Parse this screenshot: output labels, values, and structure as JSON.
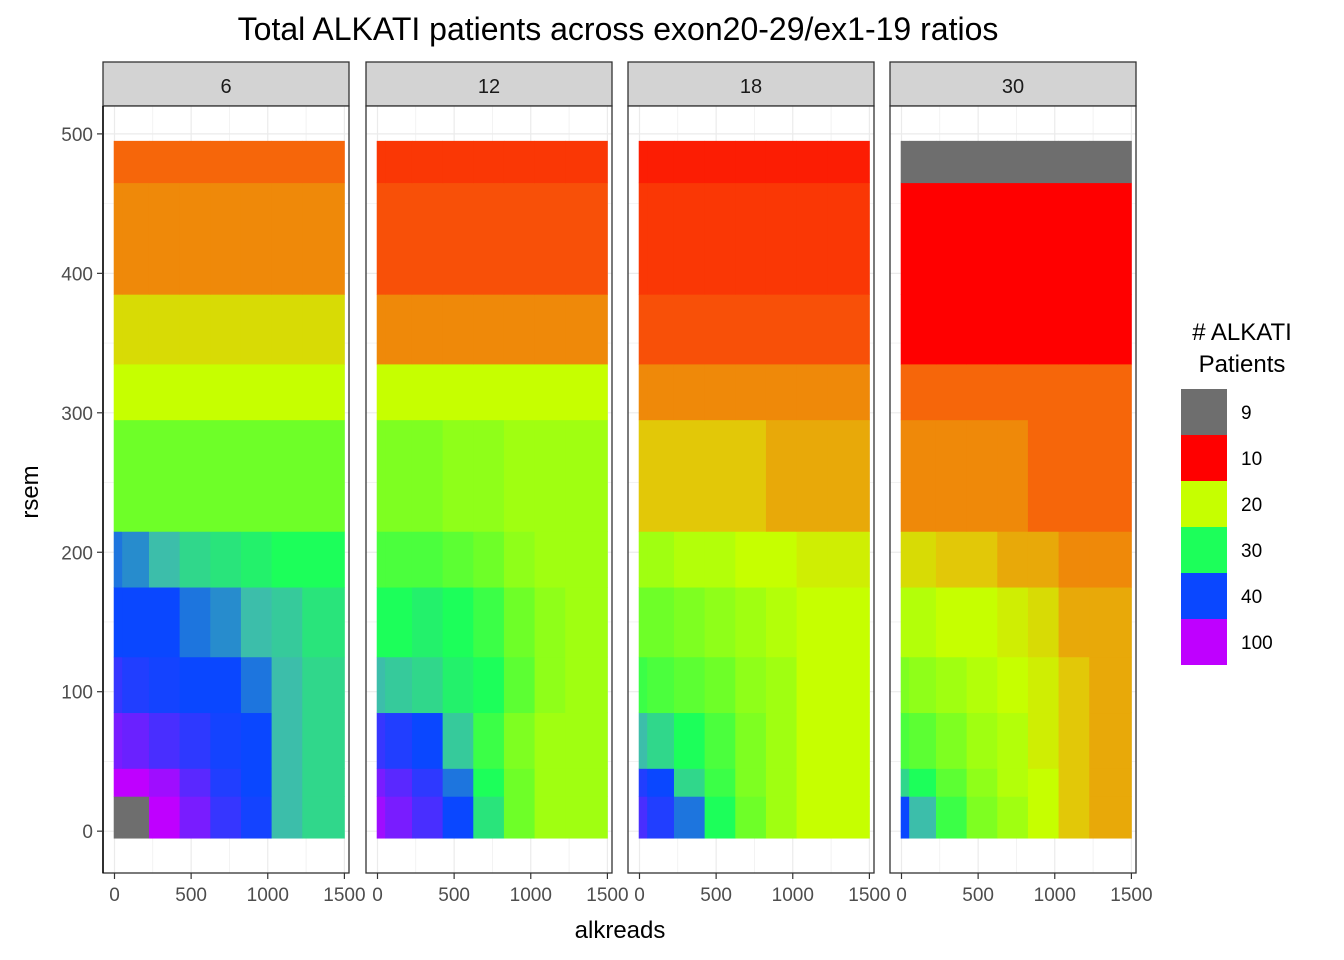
{
  "chart_data": {
    "type": "heatmap",
    "title": "Total ALKATI patients across exon20-29/ex1-19 ratios",
    "xlabel": "alkreads",
    "ylabel": "rsem",
    "xlim": [
      -75,
      1530
    ],
    "ylim": [
      -30,
      520
    ],
    "x_ticks": [
      0,
      500,
      1000,
      1500
    ],
    "x_tick_labels": [
      "0",
      "500",
      "1000",
      "1500"
    ],
    "y_ticks": [
      0,
      100,
      200,
      300,
      400,
      500
    ],
    "y_tick_labels": [
      "0",
      "100",
      "200",
      "300",
      "400",
      "500"
    ],
    "grid": true,
    "legend": {
      "title_lines": [
        "# ALKATI",
        "Patients"
      ],
      "position": "right",
      "breaks": [
        {
          "label": "9",
          "color": "#6E6E6E"
        },
        {
          "label": "10",
          "color": "#FF0000"
        },
        {
          "label": "20",
          "color": "#C6FF00"
        },
        {
          "label": "30",
          "color": "#1CFF5A"
        },
        {
          "label": "40",
          "color": "#0A47FF"
        },
        {
          "label": "100",
          "color": "#BF00FF"
        }
      ]
    },
    "x_bins": [
      [
        -5,
        50
      ],
      [
        50,
        225
      ],
      [
        225,
        425
      ],
      [
        425,
        625
      ],
      [
        625,
        825
      ],
      [
        825,
        1025
      ],
      [
        1025,
        1225
      ],
      [
        1225,
        1500
      ]
    ],
    "y_bins": [
      [
        -5,
        25
      ],
      [
        25,
        45
      ],
      [
        45,
        85
      ],
      [
        85,
        125
      ],
      [
        125,
        175
      ],
      [
        175,
        215
      ],
      [
        215,
        295
      ],
      [
        295,
        335
      ],
      [
        335,
        385
      ],
      [
        385,
        465
      ],
      [
        465,
        495
      ]
    ],
    "facets": [
      {
        "label": "6",
        "values": [
          [
            9,
            9,
            100,
            70,
            50,
            42,
            35,
            33
          ],
          [
            100,
            100,
            85,
            60,
            45,
            40,
            35,
            33
          ],
          [
            70,
            65,
            55,
            48,
            42,
            40,
            35,
            33
          ],
          [
            50,
            45,
            42,
            40,
            40,
            38,
            35,
            33
          ],
          [
            40,
            40,
            40,
            38,
            37,
            35,
            34,
            32
          ],
          [
            38,
            37,
            35,
            33,
            32,
            31,
            30,
            30
          ],
          [
            25,
            25,
            25,
            25,
            25,
            25,
            25,
            25
          ],
          [
            20,
            20,
            20,
            20,
            20,
            20,
            20,
            20
          ],
          [
            18,
            18,
            18,
            18,
            18,
            18,
            18,
            18
          ],
          [
            15,
            15,
            15,
            15,
            15,
            15,
            15,
            15
          ],
          [
            14,
            14,
            14,
            14,
            14,
            14,
            14,
            14
          ]
        ]
      },
      {
        "label": "12",
        "values": [
          [
            85,
            70,
            55,
            40,
            32,
            25,
            22,
            22
          ],
          [
            70,
            60,
            48,
            38,
            30,
            25,
            22,
            22
          ],
          [
            50,
            45,
            40,
            34,
            28,
            24,
            22,
            22
          ],
          [
            35,
            34,
            33,
            31,
            30,
            26,
            23,
            22
          ],
          [
            30,
            30,
            31,
            30,
            28,
            25,
            23,
            22
          ],
          [
            27,
            27,
            27,
            26,
            25,
            23,
            22,
            22
          ],
          [
            24,
            24,
            24,
            23,
            23,
            22,
            22,
            22
          ],
          [
            20,
            20,
            20,
            20,
            20,
            20,
            20,
            20
          ],
          [
            15,
            15,
            15,
            15,
            15,
            15,
            15,
            15
          ],
          [
            13,
            13,
            13,
            13,
            13,
            13,
            13,
            13
          ],
          [
            12,
            12,
            12,
            12,
            12,
            12,
            12,
            12
          ]
        ]
      },
      {
        "label": "18",
        "values": [
          [
            55,
            45,
            38,
            30,
            25,
            22,
            20,
            20
          ],
          [
            45,
            40,
            33,
            28,
            24,
            22,
            20,
            20
          ],
          [
            35,
            33,
            30,
            27,
            24,
            22,
            20,
            20
          ],
          [
            28,
            27,
            26,
            25,
            23,
            22,
            20,
            20
          ],
          [
            25,
            25,
            24,
            23,
            22,
            21,
            20,
            20
          ],
          [
            22,
            22,
            21,
            21,
            20,
            20,
            19,
            19
          ],
          [
            17,
            17,
            17,
            17,
            17,
            16,
            16,
            16
          ],
          [
            15,
            15,
            15,
            15,
            15,
            15,
            15,
            15
          ],
          [
            13,
            13,
            13,
            13,
            13,
            13,
            13,
            13
          ],
          [
            12,
            12,
            12,
            12,
            12,
            12,
            12,
            12
          ],
          [
            11,
            11,
            11,
            11,
            11,
            11,
            11,
            11
          ]
        ]
      },
      {
        "label": "30",
        "values": [
          [
            40,
            35,
            28,
            24,
            22,
            20,
            17,
            16
          ],
          [
            33,
            30,
            26,
            23,
            21,
            20,
            17,
            16
          ],
          [
            27,
            26,
            24,
            22,
            21,
            19,
            17,
            16
          ],
          [
            24,
            23,
            22,
            21,
            20,
            19,
            17,
            16
          ],
          [
            21,
            21,
            20,
            20,
            19,
            18,
            16,
            16
          ],
          [
            18,
            18,
            17,
            17,
            16,
            16,
            15,
            15
          ],
          [
            15,
            15,
            15,
            15,
            15,
            14,
            14,
            14
          ],
          [
            14,
            14,
            14,
            14,
            14,
            14,
            14,
            14
          ],
          [
            10,
            10,
            10,
            10,
            10,
            10,
            10,
            10
          ],
          [
            10,
            10,
            10,
            10,
            10,
            10,
            10,
            10
          ],
          [
            9,
            9,
            9,
            9,
            9,
            9,
            9,
            9
          ]
        ]
      }
    ]
  }
}
